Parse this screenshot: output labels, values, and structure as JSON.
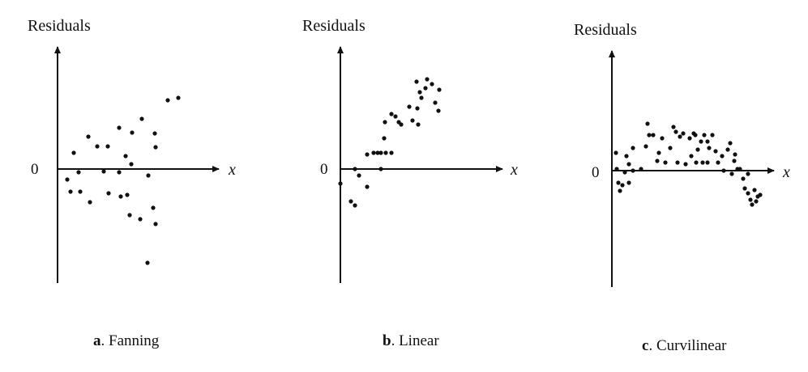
{
  "chart_data": [
    {
      "type": "scatter",
      "ylabel": "Residuals",
      "xlabel": "x",
      "zero_label": "0",
      "caption_letter": "a",
      "caption_text": ". Fanning",
      "xlim": [
        0,
        220
      ],
      "ylim": [
        -150,
        150
      ],
      "points": [
        [
          12,
          -13
        ],
        [
          16,
          -28
        ],
        [
          20,
          20
        ],
        [
          26,
          -4
        ],
        [
          28,
          -28
        ],
        [
          38,
          40
        ],
        [
          40,
          -41
        ],
        [
          49,
          28
        ],
        [
          57,
          -3
        ],
        [
          62,
          28
        ],
        [
          63,
          -30
        ],
        [
          76,
          51
        ],
        [
          76,
          -4
        ],
        [
          78,
          -34
        ],
        [
          84,
          16
        ],
        [
          86,
          -32
        ],
        [
          89,
          -57
        ],
        [
          91,
          6
        ],
        [
          92,
          45
        ],
        [
          102,
          -62
        ],
        [
          104,
          62
        ],
        [
          111,
          -116
        ],
        [
          112,
          -8
        ],
        [
          118,
          -48
        ],
        [
          121,
          27
        ],
        [
          121,
          -68
        ],
        [
          120,
          44
        ],
        [
          136,
          85
        ],
        [
          149,
          88
        ]
      ]
    },
    {
      "type": "scatter",
      "ylabel": "Residuals",
      "xlabel": "x",
      "zero_label": "0",
      "caption_letter": "b",
      "caption_text": ". Linear",
      "xlim": [
        0,
        220
      ],
      "ylim": [
        -150,
        150
      ],
      "points": [
        [
          0,
          -18
        ],
        [
          13,
          -40
        ],
        [
          18,
          -45
        ],
        [
          18,
          0
        ],
        [
          23,
          -8
        ],
        [
          33,
          -22
        ],
        [
          33,
          18
        ],
        [
          41,
          20
        ],
        [
          46,
          20
        ],
        [
          50,
          20
        ],
        [
          50,
          0
        ],
        [
          54,
          38
        ],
        [
          55,
          58
        ],
        [
          56,
          20
        ],
        [
          63,
          20
        ],
        [
          63,
          68
        ],
        [
          68,
          65
        ],
        [
          72,
          58
        ],
        [
          75,
          55
        ],
        [
          85,
          77
        ],
        [
          89,
          60
        ],
        [
          94,
          108
        ],
        [
          95,
          75
        ],
        [
          96,
          55
        ],
        [
          98,
          95
        ],
        [
          100,
          88
        ],
        [
          105,
          100
        ],
        [
          107,
          111
        ],
        [
          113,
          105
        ],
        [
          117,
          82
        ],
        [
          121,
          72
        ],
        [
          122,
          98
        ]
      ]
    },
    {
      "type": "scatter",
      "ylabel": "Residuals",
      "xlabel": "x",
      "zero_label": "0",
      "caption_letter": "c",
      "caption_text": ". Curvilinear",
      "xlim": [
        0,
        220
      ],
      "ylim": [
        -150,
        150
      ],
      "points": [
        [
          5,
          22
        ],
        [
          6,
          2
        ],
        [
          8,
          -15
        ],
        [
          10,
          -25
        ],
        [
          13,
          -18
        ],
        [
          16,
          -2
        ],
        [
          18,
          18
        ],
        [
          21,
          8
        ],
        [
          21,
          -15
        ],
        [
          26,
          28
        ],
        [
          26,
          0
        ],
        [
          36,
          2
        ],
        [
          42,
          30
        ],
        [
          44,
          58
        ],
        [
          46,
          44
        ],
        [
          51,
          44
        ],
        [
          56,
          12
        ],
        [
          58,
          22
        ],
        [
          62,
          40
        ],
        [
          66,
          10
        ],
        [
          72,
          28
        ],
        [
          76,
          54
        ],
        [
          79,
          48
        ],
        [
          81,
          10
        ],
        [
          84,
          42
        ],
        [
          88,
          46
        ],
        [
          91,
          8
        ],
        [
          96,
          40
        ],
        [
          98,
          18
        ],
        [
          101,
          46
        ],
        [
          103,
          44
        ],
        [
          104,
          10
        ],
        [
          106,
          26
        ],
        [
          110,
          36
        ],
        [
          112,
          10
        ],
        [
          114,
          44
        ],
        [
          118,
          36
        ],
        [
          118,
          10
        ],
        [
          120,
          28
        ],
        [
          124,
          44
        ],
        [
          128,
          24
        ],
        [
          131,
          10
        ],
        [
          136,
          18
        ],
        [
          138,
          0
        ],
        [
          143,
          26
        ],
        [
          146,
          34
        ],
        [
          148,
          -4
        ],
        [
          151,
          12
        ],
        [
          152,
          20
        ],
        [
          155,
          2
        ],
        [
          158,
          2
        ],
        [
          162,
          -10
        ],
        [
          164,
          -22
        ],
        [
          168,
          -4
        ],
        [
          168,
          -28
        ],
        [
          171,
          -36
        ],
        [
          173,
          -42
        ],
        [
          176,
          -24
        ],
        [
          178,
          -38
        ],
        [
          180,
          -32
        ],
        [
          183,
          -30
        ]
      ]
    }
  ]
}
